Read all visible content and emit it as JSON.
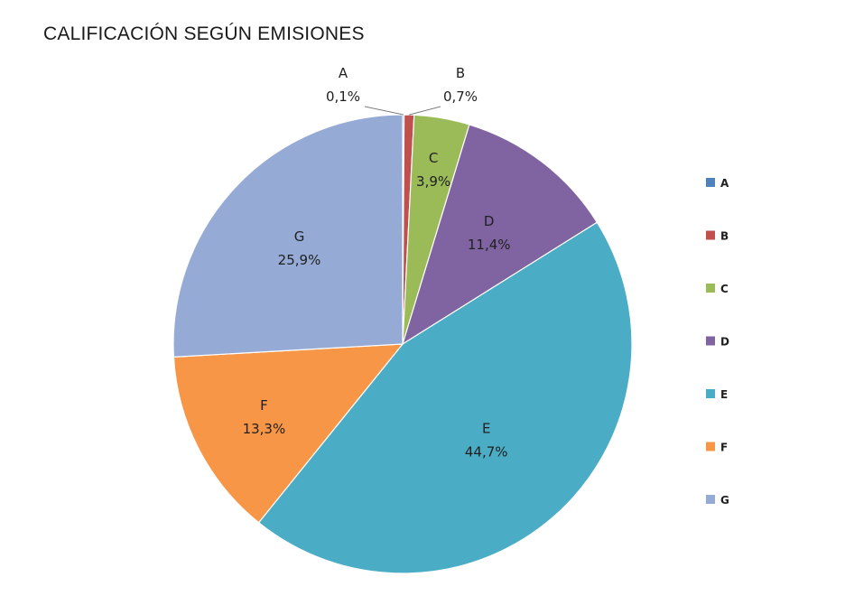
{
  "chart_data": {
    "type": "pie",
    "title": "CALIFICACIÓN SEGÚN EMISIONES",
    "categories": [
      "A",
      "B",
      "C",
      "D",
      "E",
      "F",
      "G"
    ],
    "values": [
      0.1,
      0.7,
      3.9,
      11.4,
      44.7,
      13.3,
      25.9
    ],
    "value_labels": [
      "0,1%",
      "0,7%",
      "3,9%",
      "11,4%",
      "44,7%",
      "13,3%",
      "25,9%"
    ],
    "colors": [
      "#4F81BD",
      "#C0504D",
      "#9BBB59",
      "#8064A2",
      "#4BACC6",
      "#F79646",
      "#95ABD5"
    ],
    "legend_position": "right",
    "start": "12 o'clock",
    "direction": "clockwise"
  }
}
